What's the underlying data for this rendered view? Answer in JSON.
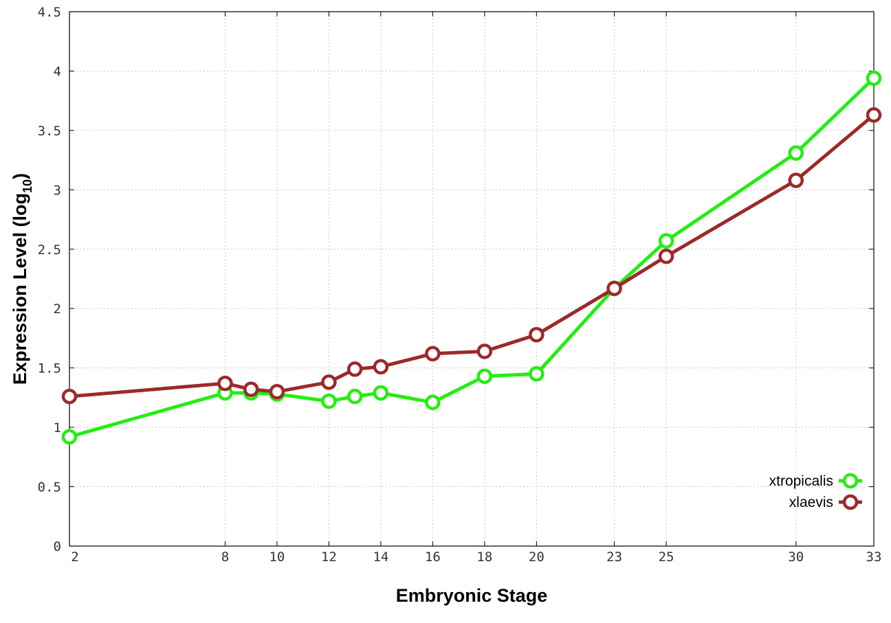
{
  "chart_data": {
    "type": "line",
    "title": "",
    "xlabel": "Embryonic Stage",
    "ylabel_main": "Expression Level (log",
    "ylabel_sub": "10",
    "ylabel_close": ")",
    "x": [
      2,
      8,
      9,
      10,
      12,
      13,
      14,
      16,
      18,
      20,
      23,
      25,
      30,
      33
    ],
    "x_ticks": [
      "2",
      "8",
      "10",
      "12",
      "14",
      "16",
      "18",
      "20",
      "23",
      "25",
      "30",
      "33"
    ],
    "y_ticks": [
      "0",
      "0.5",
      "1",
      "1.5",
      "2",
      "2.5",
      "3",
      "3.5",
      "4",
      "4.5"
    ],
    "ylim": [
      0,
      4.5
    ],
    "grid": true,
    "legend_position": "bottom-right",
    "series": [
      {
        "name": "xtropicalis",
        "color": "#22ee11",
        "values": [
          0.92,
          1.29,
          1.29,
          1.28,
          1.22,
          1.26,
          1.29,
          1.21,
          1.43,
          1.45,
          2.17,
          2.57,
          3.31,
          3.94
        ]
      },
      {
        "name": "xlaevis",
        "color": "#9b2a2a",
        "values": [
          1.26,
          1.37,
          1.32,
          1.3,
          1.38,
          1.49,
          1.51,
          1.62,
          1.64,
          1.78,
          2.17,
          2.44,
          3.08,
          3.63
        ]
      }
    ]
  }
}
